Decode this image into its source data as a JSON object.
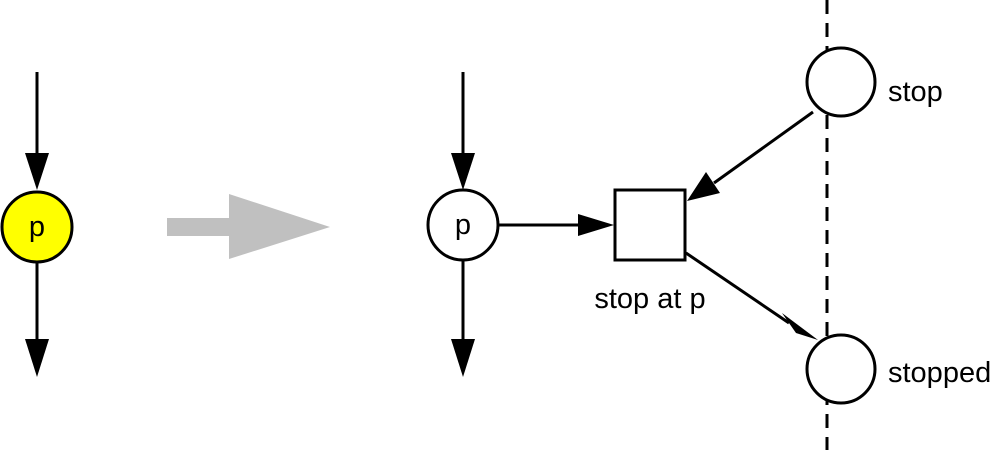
{
  "diagram": {
    "left_place": {
      "label": "p",
      "fill_color": "#ffff00"
    },
    "transform_arrow_color": "#c0c0c0",
    "right_place": {
      "label": "p",
      "fill_color": "#ffffff"
    },
    "transition": {
      "label": "stop at p"
    },
    "stop_place": {
      "label": "stop"
    },
    "stopped_place": {
      "label": "stopped"
    }
  }
}
